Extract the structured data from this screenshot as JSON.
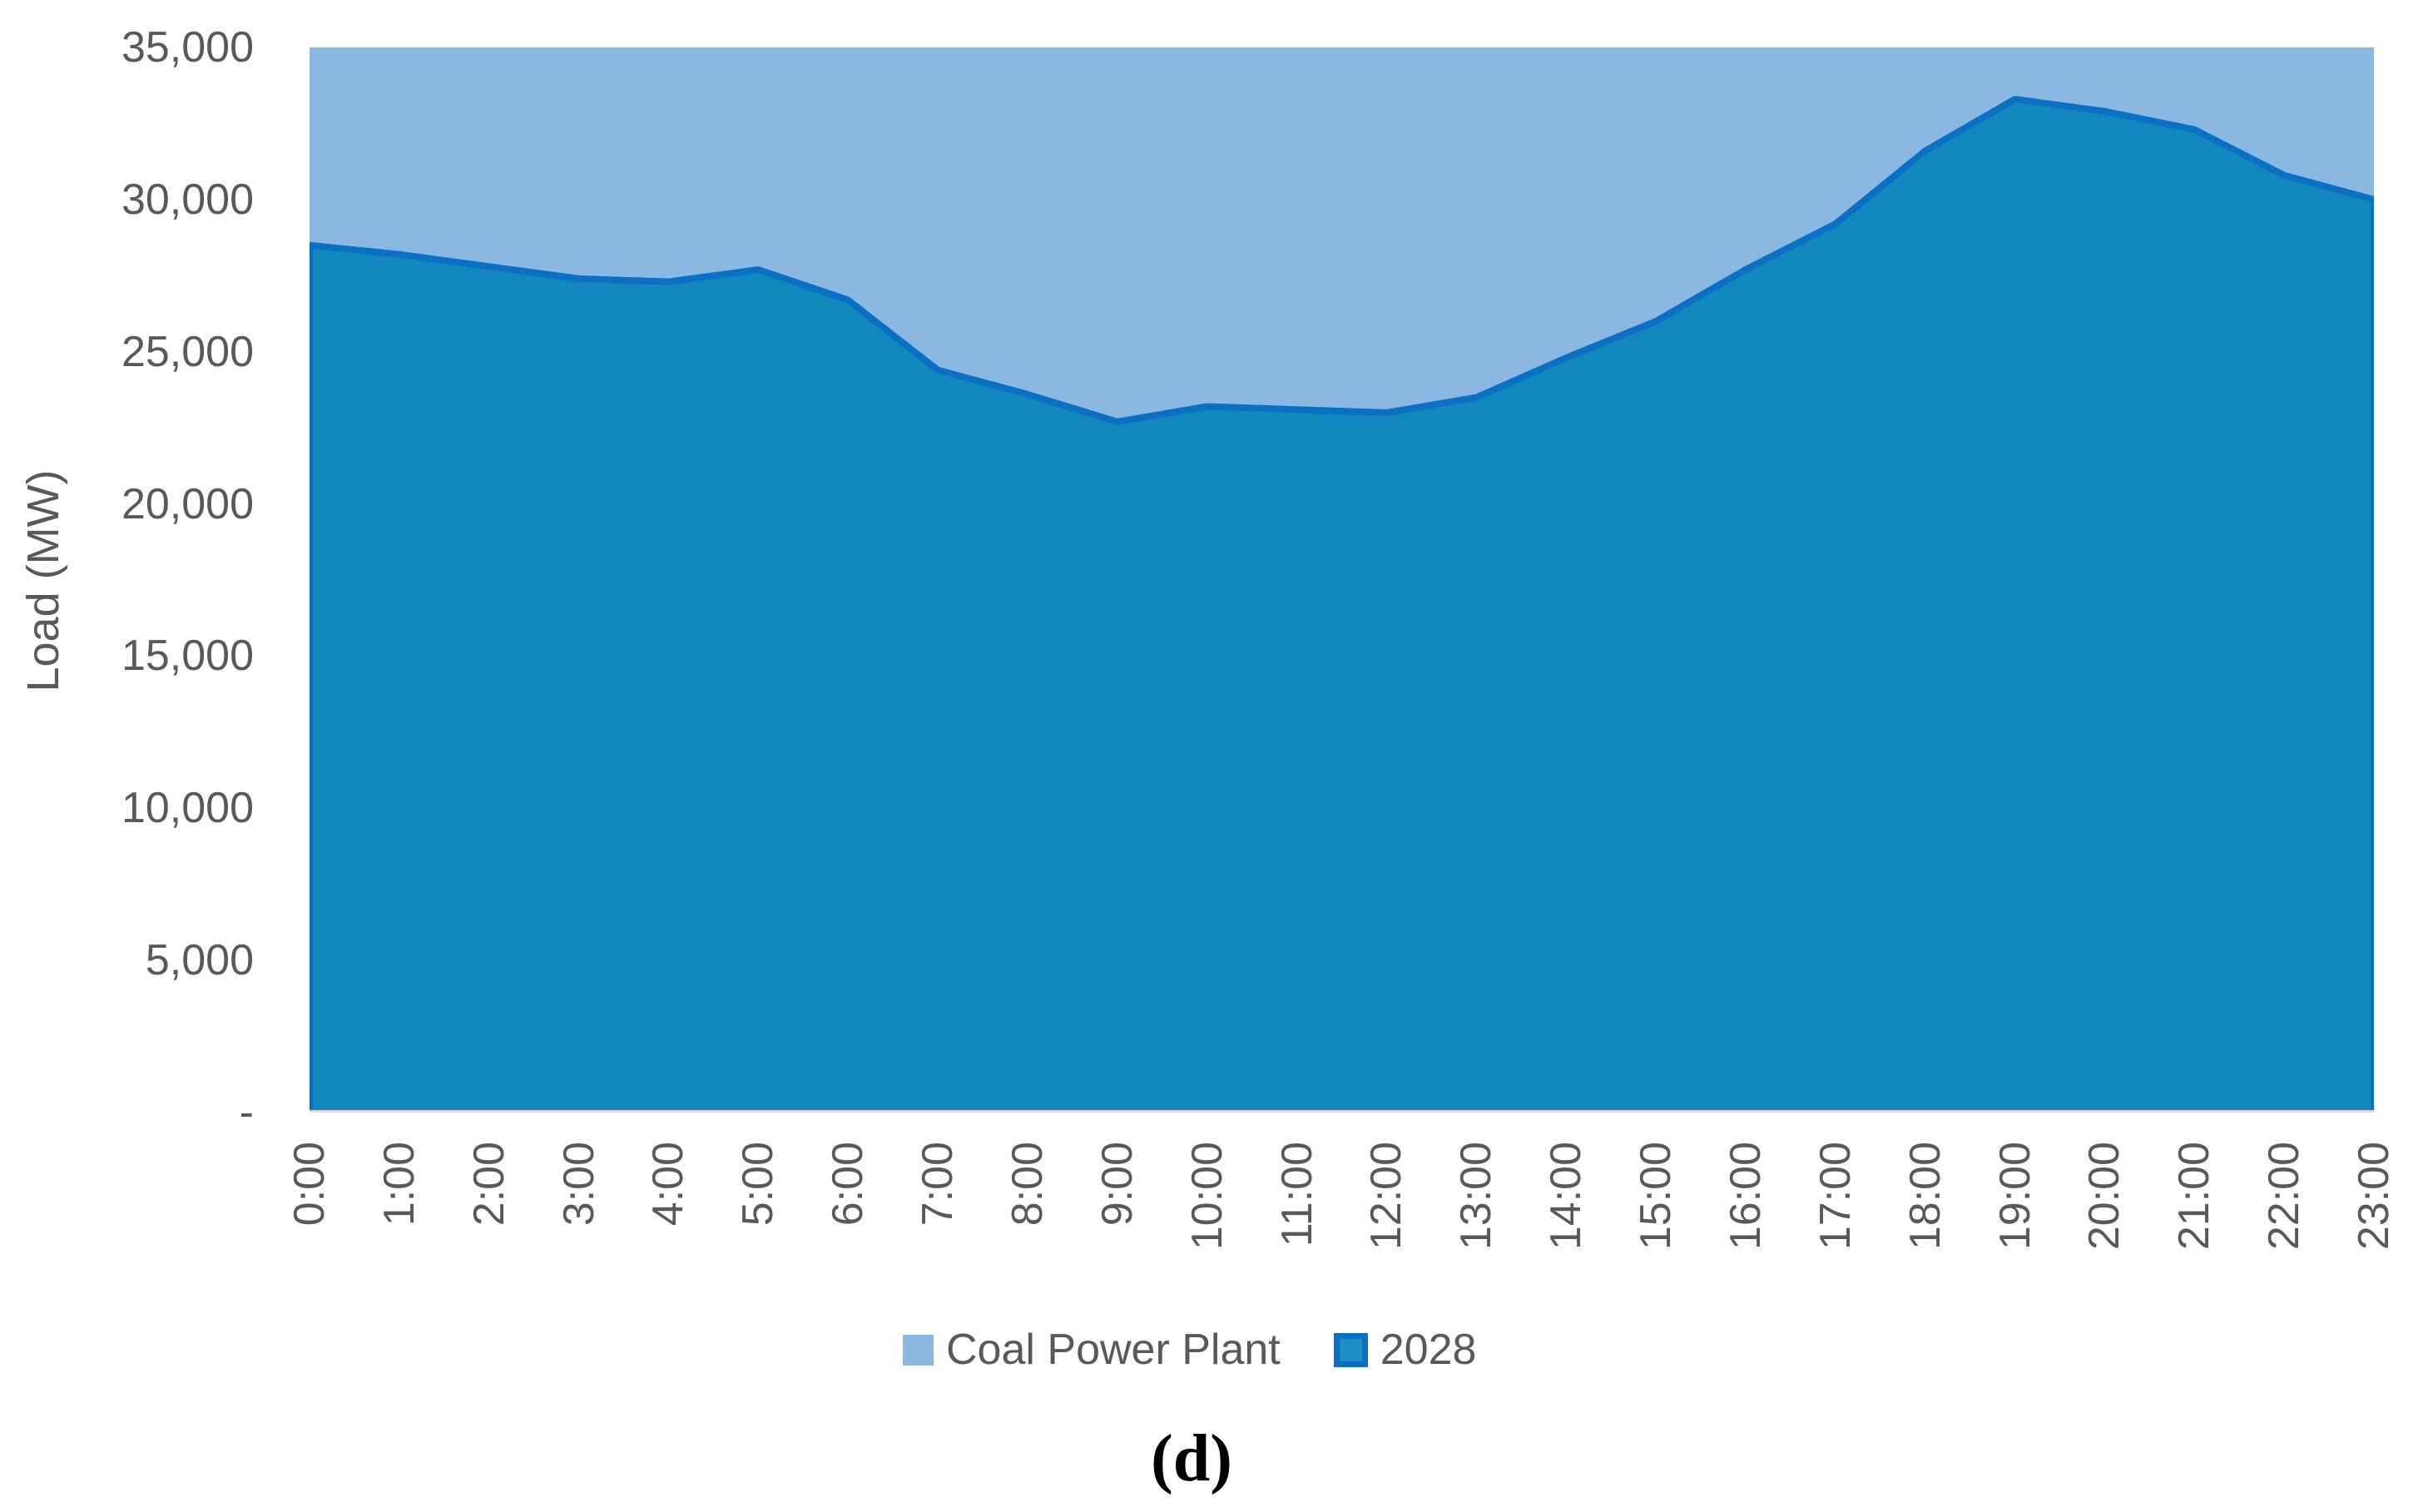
{
  "caption": "(d)",
  "chart_data": {
    "type": "area",
    "mode": "overlapped-areas",
    "title": "",
    "xlabel": "",
    "ylabel": "Load (MW)",
    "ylim": [
      0,
      35000
    ],
    "ytick_interval": 5000,
    "grid": false,
    "legend_position": "bottom",
    "yticks": [
      {
        "value": 35000,
        "label": "35,000"
      },
      {
        "value": 30000,
        "label": "30,000"
      },
      {
        "value": 25000,
        "label": "25,000"
      },
      {
        "value": 20000,
        "label": "20,000"
      },
      {
        "value": 15000,
        "label": "15,000"
      },
      {
        "value": 10000,
        "label": "10,000"
      },
      {
        "value": 5000,
        "label": "5,000"
      },
      {
        "value": 0,
        "label": "-"
      }
    ],
    "categories": [
      "0:00",
      "1:00",
      "2:00",
      "3:00",
      "4:00",
      "5:00",
      "6:00",
      "7:00",
      "8:00",
      "9:00",
      "10:00",
      "11:00",
      "12:00",
      "13:00",
      "14:00",
      "15:00",
      "16:00",
      "17:00",
      "18:00",
      "19:00",
      "20:00",
      "21:00",
      "22:00",
      "23:00"
    ],
    "series": [
      {
        "name": "Coal Power Plant",
        "fill": "#8BB8E0",
        "stroke": "none",
        "clipped_at_axis_max": true,
        "values": [
          35000,
          35000,
          35000,
          35000,
          35000,
          35000,
          35000,
          35000,
          35000,
          35000,
          35000,
          35000,
          35000,
          35000,
          35000,
          35000,
          35000,
          35000,
          35000,
          35000,
          35000,
          35000,
          35000,
          35000
        ]
      },
      {
        "name": "2028",
        "fill": "#1388BF",
        "stroke": "#0B6FC4",
        "values": [
          28500,
          28200,
          27800,
          27400,
          27300,
          27700,
          26700,
          24400,
          23600,
          22700,
          23200,
          23100,
          23000,
          23500,
          24800,
          26000,
          27700,
          29200,
          31600,
          33300,
          32900,
          32300,
          30800,
          30000
        ]
      }
    ],
    "legend": {
      "entries": [
        {
          "label": "Coal Power Plant",
          "swatch_fill": "#8BB8E0",
          "swatch_border": "#85B4DE"
        },
        {
          "label": "2028",
          "swatch_fill": "#1E8FC6",
          "swatch_border": "#0B6FC4"
        }
      ]
    },
    "axis_line_color": "#D9D9D9"
  }
}
